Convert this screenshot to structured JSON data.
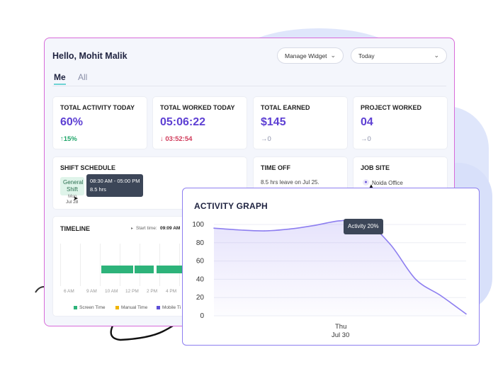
{
  "header": {
    "greeting": "Hello, Mohit Malik",
    "manage_widget": "Manage Widget",
    "date_range": "Today"
  },
  "tabs": [
    {
      "label": "Me",
      "active": true
    },
    {
      "label": "All",
      "active": false
    }
  ],
  "cards": {
    "activity": {
      "title": "TOTAL ACTIVITY TODAY",
      "value": "60%",
      "change": "↑15%"
    },
    "worked": {
      "title": "TOTAL WORKED TODAY",
      "value": "05:06:22",
      "change": "↓ 03:52:54"
    },
    "earned": {
      "title": "TOTAL EARNED",
      "value": "$145",
      "change": "→0"
    },
    "project": {
      "title": "PROJECT WORKED",
      "value": "04",
      "change": "→0"
    },
    "shift": {
      "title": "SHIFT SCHEDULE",
      "tag_line1": "General",
      "tag_line2": "Shift",
      "day": "Mon",
      "date": "Jul 28",
      "tooltip_time": "08:30 AM - 05:00 PM",
      "tooltip_hours": "8.5 hrs"
    },
    "timeoff": {
      "title": "TIME OFF",
      "text": "8.5 hrs leave on Jul 25."
    },
    "jobsite": {
      "title": "JOB SITE",
      "location": "Noida Office"
    }
  },
  "timeline": {
    "title": "TIMELINE",
    "start_label": "Start time:",
    "start_value": "09:09 AM",
    "axis": [
      "6 AM",
      "9 AM",
      "10 AM",
      "12 PM",
      "2 PM",
      "4 PM"
    ],
    "legend": [
      {
        "label": "Screen Time",
        "color": "#2db37a"
      },
      {
        "label": "Manual Time",
        "color": "#f0b400"
      },
      {
        "label": "Mobile Ti",
        "color": "#5d4fd6"
      }
    ]
  },
  "activity_graph": {
    "title": "ACTIVITY GRAPH",
    "tooltip": "Activity 20%",
    "x_day": "Thu",
    "x_date": "Jul 30"
  },
  "chart_data": {
    "type": "area",
    "title": "ACTIVITY GRAPH",
    "yticks": [
      "100",
      "80",
      "60",
      "40",
      "20",
      "0"
    ],
    "ylim": [
      0,
      100
    ],
    "xlabel": "",
    "ylabel": "",
    "x": [
      0,
      0.1,
      0.2,
      0.3,
      0.4,
      0.5,
      0.6,
      0.7,
      0.8,
      0.9,
      1.0
    ],
    "series": [
      {
        "values": [
          96,
          94,
          93,
          95,
          99,
          104,
          103,
          78,
          40,
          22,
          2
        ],
        "color": "#8d7ef0"
      }
    ],
    "grid": true
  }
}
